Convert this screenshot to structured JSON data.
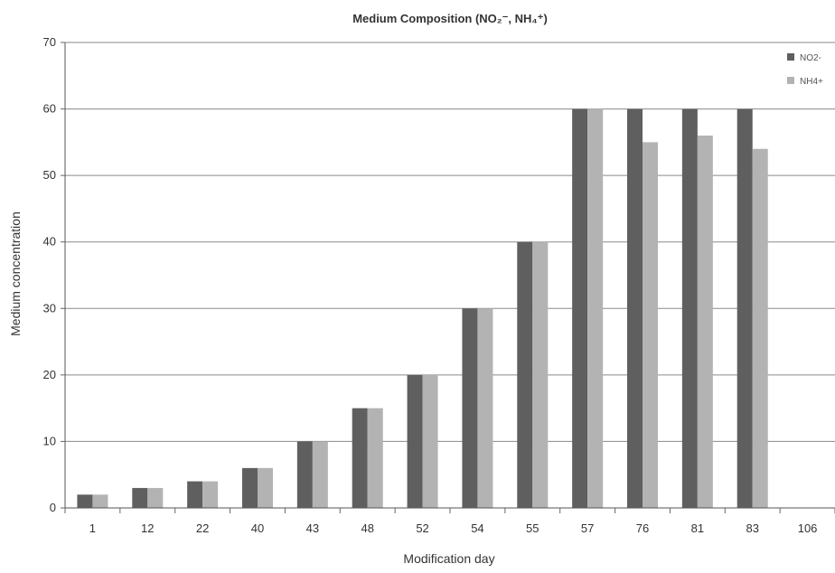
{
  "chart_data": {
    "type": "bar",
    "title": "Medium Composition (NO₂⁻, NH₄⁺)",
    "xlabel": "Modification day",
    "ylabel": "Medium concentration",
    "categories": [
      "1",
      "12",
      "22",
      "40",
      "43",
      "48",
      "52",
      "54",
      "55",
      "57",
      "76",
      "81",
      "83",
      "106"
    ],
    "series": [
      {
        "name": "NO2-",
        "color": "#5f5f5f",
        "values": [
          2,
          3,
          4,
          6,
          10,
          15,
          20,
          30,
          40,
          60,
          60,
          60,
          60,
          null
        ]
      },
      {
        "name": "NH4+",
        "color": "#b3b3b3",
        "values": [
          2,
          3,
          4,
          6,
          10,
          15,
          20,
          30,
          40,
          60,
          55,
          56,
          54,
          null
        ]
      }
    ],
    "ylim": [
      0,
      70
    ],
    "yticks": [
      0,
      10,
      20,
      30,
      40,
      50,
      60,
      70
    ],
    "grid": true,
    "legend_position": "top-right"
  }
}
